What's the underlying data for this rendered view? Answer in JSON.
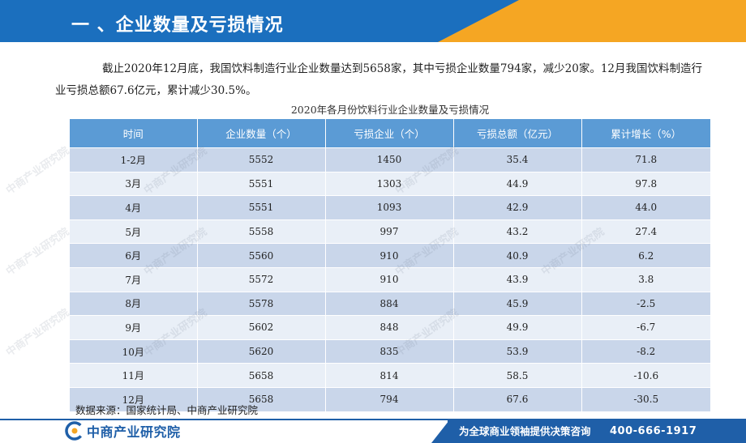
{
  "header": {
    "title": "一 、企业数量及亏损情况"
  },
  "intro": "截止2020年12月底，我国饮料制造行业企业数量达到5658家，其中亏损企业数量794家，减少20家。12月我国饮料制造行业亏损总额67.6亿元，累计减少30.5%。",
  "table": {
    "caption": "2020年各月份饮料行业企业数量及亏损情况",
    "headers": [
      "时间",
      "企业数量（个）",
      "亏损企业（个）",
      "亏损总额（亿元）",
      "累计增长（%）"
    ],
    "rows": [
      [
        "1-2月",
        "5552",
        "1450",
        "35.4",
        "71.8"
      ],
      [
        "3月",
        "5551",
        "1303",
        "44.9",
        "97.8"
      ],
      [
        "4月",
        "5551",
        "1093",
        "42.9",
        "44.0"
      ],
      [
        "5月",
        "5558",
        "997",
        "43.2",
        "27.4"
      ],
      [
        "6月",
        "5560",
        "910",
        "40.9",
        "6.2"
      ],
      [
        "7月",
        "5572",
        "910",
        "43.9",
        "3.8"
      ],
      [
        "8月",
        "5578",
        "884",
        "45.9",
        "-2.5"
      ],
      [
        "9月",
        "5602",
        "848",
        "49.9",
        "-6.7"
      ],
      [
        "10月",
        "5620",
        "835",
        "53.9",
        "-8.2"
      ],
      [
        "11月",
        "5658",
        "814",
        "58.5",
        "-10.6"
      ],
      [
        "12月",
        "5658",
        "794",
        "67.6",
        "-30.5"
      ]
    ]
  },
  "source": "数据来源：国家统计局、中商产业研究院",
  "footer": {
    "logo_text": "中商产业研究院",
    "slogan": "为全球商业领袖提供决策咨询",
    "phone": "400-666-1917"
  },
  "colors": {
    "banner_blue": "#1b6fbe",
    "banner_orange": "#f5a623",
    "header_row": "#5b9bd5",
    "row_dark": "#c9d6ea",
    "row_light": "#e9eff7",
    "footer_blue": "#1f5fa8"
  }
}
